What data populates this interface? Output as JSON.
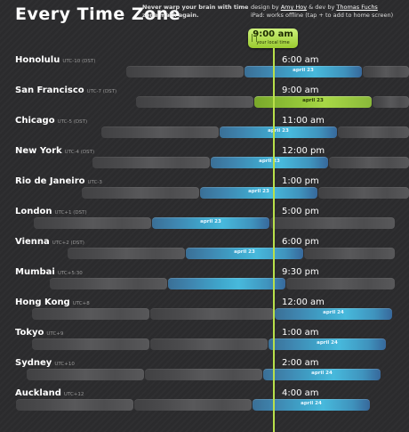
{
  "header": {
    "title": "Every Time Zone",
    "tagline": "Never warp your brain with time zone math again.",
    "credits_prefix": "design by",
    "credits_designer": "Amy Hoy",
    "credits_mid": "& dev by",
    "credits_dev": "Thomas Fuchs",
    "credits_line2": "iPad: works offline (tap + to add to home screen)"
  },
  "now": {
    "time": "9:00 am",
    "label": "your local time"
  },
  "colors": {
    "accent_green": "#9acb2f",
    "day_blue": "#3fa7cc",
    "background": "#2b2b2d"
  },
  "cities": [
    {
      "name": "Honolulu",
      "utc": "UTC-10 (DST)",
      "time": "6:00 am",
      "date": "april 23"
    },
    {
      "name": "San Francisco",
      "utc": "UTC-7 (DST)",
      "time": "9:00 am",
      "date": "april 23"
    },
    {
      "name": "Chicago",
      "utc": "UTC-5 (DST)",
      "time": "11:00 am",
      "date": "april 23"
    },
    {
      "name": "New York",
      "utc": "UTC-4 (DST)",
      "time": "12:00 pm",
      "date": "april 23"
    },
    {
      "name": "Rio de Janeiro",
      "utc": "UTC-3",
      "time": "1:00 pm",
      "date": "april 23"
    },
    {
      "name": "London",
      "utc": "UTC+1 (DST)",
      "time": "5:00 pm",
      "date": "april 23"
    },
    {
      "name": "Vienna",
      "utc": "UTC+2 (DST)",
      "time": "6:00 pm",
      "date": "april 23"
    },
    {
      "name": "Mumbai",
      "utc": "UTC+5:30",
      "time": "9:30 pm",
      "date": "april 23"
    },
    {
      "name": "Hong Kong",
      "utc": "UTC+8",
      "time": "12:00 am",
      "date": "april 24"
    },
    {
      "name": "Tokyo",
      "utc": "UTC+9",
      "time": "1:00 am",
      "date": "april 24"
    },
    {
      "name": "Sydney",
      "utc": "UTC+10",
      "time": "2:00 am",
      "date": "april 24"
    },
    {
      "name": "Auckland",
      "utc": "UTC+12",
      "time": "4:00 am",
      "date": "april 24"
    }
  ]
}
